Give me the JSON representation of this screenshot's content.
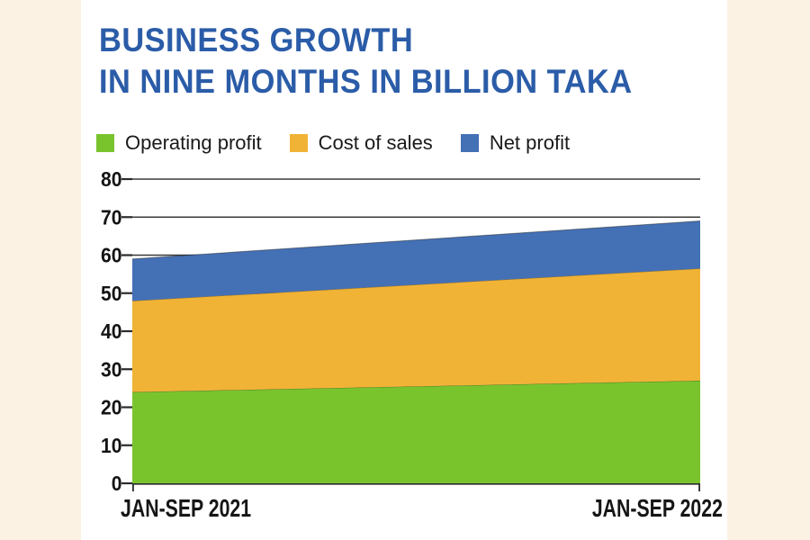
{
  "title": {
    "line1": "BUSINESS GROWTH",
    "line2": "IN NINE MONTHS IN BILLION TAKA"
  },
  "legend": [
    {
      "label": "Operating profit",
      "color": "#79C42D"
    },
    {
      "label": "Cost of sales",
      "color": "#F1B336"
    },
    {
      "label": "Net profit",
      "color": "#4470B5"
    }
  ],
  "colors": {
    "background": "#FCF2E4",
    "card": "#FFFFFF",
    "title": "#2B5CA8",
    "text": "#151515",
    "grid": "#3A3A3A",
    "axis": "#2B2B2B"
  },
  "chart_data": {
    "type": "area",
    "stacked": true,
    "title": "BUSINESS GROWTH IN NINE MONTHS IN BILLION TAKA",
    "categories": [
      "JAN-SEP 2021",
      "JAN-SEP 2022"
    ],
    "series": [
      {
        "name": "Operating profit",
        "values": [
          24,
          27
        ],
        "color": "#79C42D"
      },
      {
        "name": "Cost of sales",
        "values": [
          24,
          29.5
        ],
        "color": "#F1B336"
      },
      {
        "name": "Net profit",
        "values": [
          11,
          12.5
        ],
        "color": "#4470B5"
      }
    ],
    "stacked_totals": [
      59,
      69
    ],
    "xlabel": "",
    "ylabel": "",
    "ylim": [
      0,
      80
    ],
    "y_ticks": [
      0,
      10,
      20,
      30,
      40,
      50,
      60,
      70,
      80
    ],
    "grid": true,
    "legend_position": "top"
  }
}
